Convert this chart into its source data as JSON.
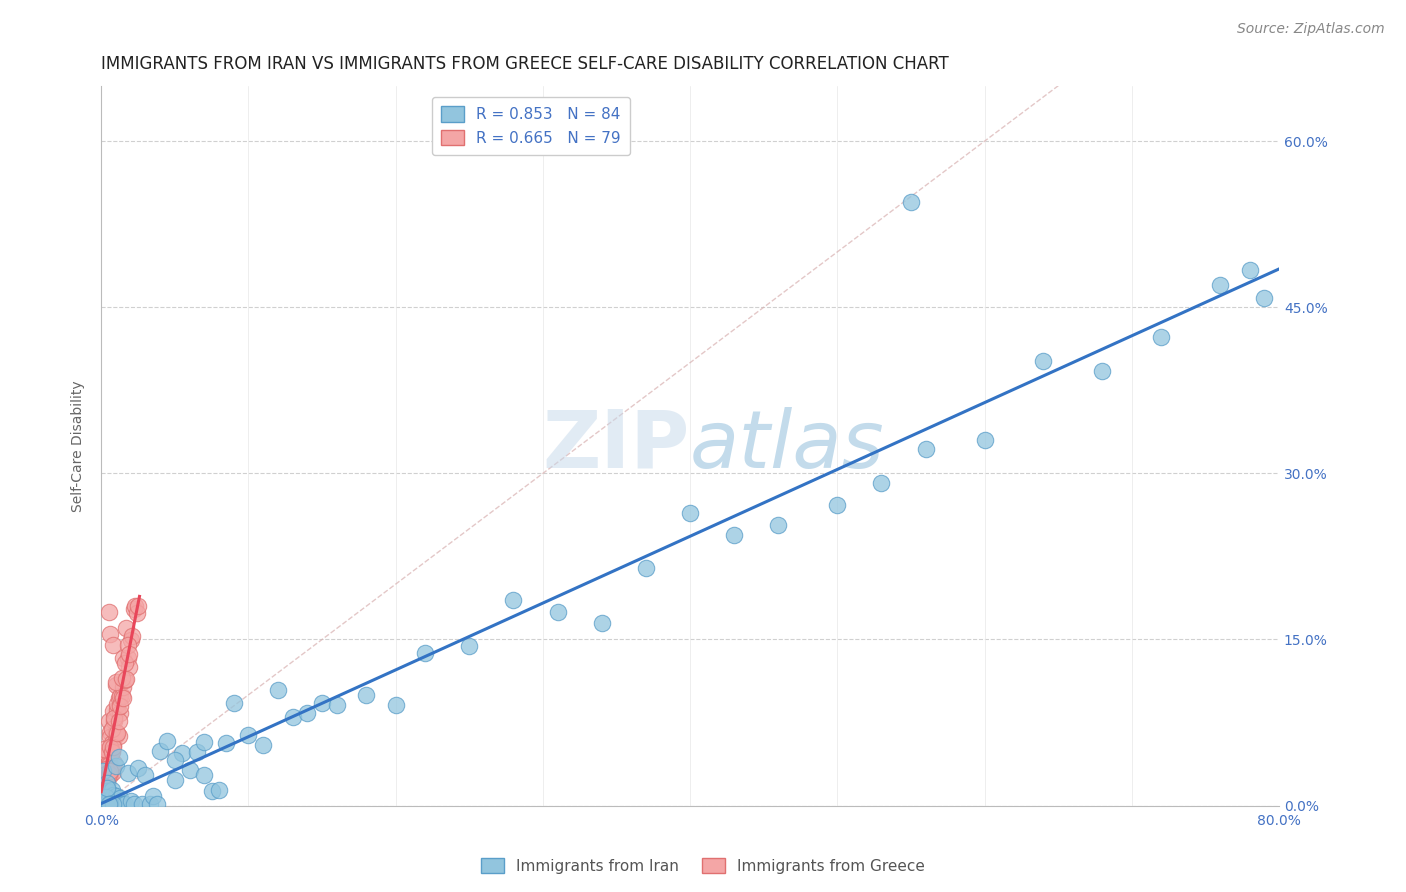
{
  "title": "IMMIGRANTS FROM IRAN VS IMMIGRANTS FROM GREECE SELF-CARE DISABILITY CORRELATION CHART",
  "source": "Source: ZipAtlas.com",
  "ylabel": "Self-Care Disability",
  "xlim": [
    0.0,
    0.8
  ],
  "ylim": [
    0.0,
    0.65
  ],
  "xticks": [
    0.0,
    0.1,
    0.2,
    0.3,
    0.4,
    0.5,
    0.6,
    0.7,
    0.8
  ],
  "ytick_labels": [
    "0.0%",
    "15.0%",
    "30.0%",
    "45.0%",
    "60.0%"
  ],
  "yticks": [
    0.0,
    0.15,
    0.3,
    0.45,
    0.6
  ],
  "iran_color": "#92c5de",
  "iran_edge": "#5a9ec9",
  "greece_color": "#f4a6a6",
  "greece_edge": "#e07070",
  "trendline_iran_color": "#3373c4",
  "trendline_greece_color": "#e8465a",
  "R_iran": 0.853,
  "N_iran": 84,
  "R_greece": 0.665,
  "N_greece": 79,
  "background_color": "#ffffff",
  "grid_color": "#d0d0d0",
  "watermark_color": "#c8d8ea",
  "title_fontsize": 12,
  "label_fontsize": 10,
  "tick_fontsize": 10,
  "source_fontsize": 10
}
